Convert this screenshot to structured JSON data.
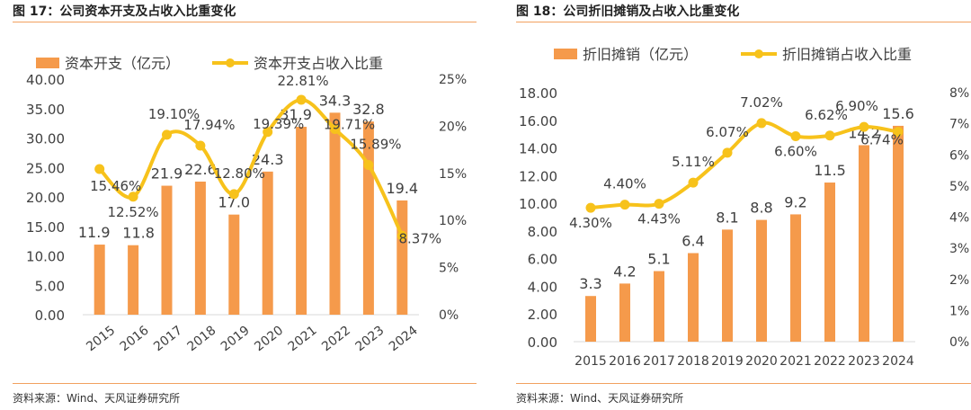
{
  "colors": {
    "bar": "#f59a4b",
    "line": "#f7c21b",
    "text": "#404040",
    "accent_rule": "#f2a15f"
  },
  "panels": [
    {
      "title": "图 17：公司资本开支及占收入比重变化",
      "source": "资料来源：Wind、天风证券研究所"
    },
    {
      "title": "图 18：公司折旧摊销及占收入比重变化",
      "source": "资料来源：Wind、天风证券研究所"
    }
  ],
  "chart_data": [
    {
      "type": "bar",
      "categories": [
        "2015",
        "2016",
        "2017",
        "2018",
        "2019",
        "2020",
        "2021",
        "2022",
        "2023",
        "2024"
      ],
      "series": [
        {
          "name": "资本开支（亿元）",
          "kind": "bar",
          "axis": "left",
          "values": [
            11.9,
            11.8,
            21.9,
            22.6,
            17.0,
            24.3,
            31.9,
            34.3,
            32.8,
            19.4
          ],
          "labels": [
            "11.9",
            "11.8",
            "21.9",
            "22.6",
            "17.0",
            "24.3",
            "31.9",
            "34.3",
            "32.8",
            "19.4"
          ]
        },
        {
          "name": "资本开支占收入比重",
          "kind": "line",
          "axis": "right",
          "values": [
            15.46,
            12.52,
            19.1,
            17.94,
            12.8,
            19.39,
            22.81,
            19.71,
            15.89,
            8.37
          ],
          "labels": [
            "15.46%",
            "12.52%",
            "19.10%",
            "17.94%",
            "12.80%",
            "19.39%",
            "22.81%",
            "19.71%",
            "15.89%",
            "8.37%"
          ]
        }
      ],
      "left_axis": {
        "ylim": [
          0,
          40
        ],
        "ticks": [
          "0.00",
          "5.00",
          "10.00",
          "15.00",
          "20.00",
          "25.00",
          "30.00",
          "35.00",
          "40.00"
        ]
      },
      "right_axis": {
        "ylim": [
          0,
          25
        ],
        "ticks": [
          "0%",
          "5%",
          "10%",
          "15%",
          "20%",
          "25%"
        ]
      },
      "legend_position": "top"
    },
    {
      "type": "bar",
      "categories": [
        "2015",
        "2016",
        "2017",
        "2018",
        "2019",
        "2020",
        "2021",
        "2022",
        "2023",
        "2024"
      ],
      "series": [
        {
          "name": "折旧摊销（亿元）",
          "kind": "bar",
          "axis": "left",
          "values": [
            3.3,
            4.2,
            5.1,
            6.4,
            8.1,
            8.8,
            9.2,
            11.5,
            14.2,
            15.6
          ],
          "labels": [
            "3.3",
            "4.2",
            "5.1",
            "6.4",
            "8.1",
            "8.8",
            "9.2",
            "11.5",
            "14.2",
            "15.6"
          ]
        },
        {
          "name": "折旧摊销占收入比重",
          "kind": "line",
          "axis": "right",
          "values": [
            4.3,
            4.4,
            4.43,
            5.11,
            6.07,
            7.02,
            6.6,
            6.62,
            6.9,
            6.74
          ],
          "labels": [
            "4.30%",
            "4.40%",
            "4.43%",
            "5.11%",
            "6.07%",
            "7.02%",
            "6.60%",
            "6.62%",
            "6.90%",
            "6.74%"
          ]
        }
      ],
      "left_axis": {
        "ylim": [
          0,
          18
        ],
        "ticks": [
          "0.00",
          "2.00",
          "4.00",
          "6.00",
          "8.00",
          "10.00",
          "12.00",
          "14.00",
          "16.00",
          "18.00"
        ]
      },
      "right_axis": {
        "ylim": [
          0,
          8
        ],
        "ticks": [
          "0%",
          "1%",
          "2%",
          "3%",
          "4%",
          "5%",
          "6%",
          "7%",
          "8%"
        ]
      },
      "legend_position": "top"
    }
  ]
}
